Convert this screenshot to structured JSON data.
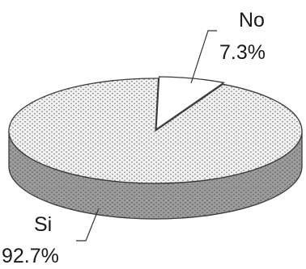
{
  "chart_data": {
    "type": "pie",
    "style": "3d",
    "slices": [
      {
        "label": "Si",
        "value": 92.7,
        "value_label": "92.7%"
      },
      {
        "label": "No",
        "value": 7.3,
        "value_label": "7.3%"
      }
    ],
    "colors": {
      "top_fill": "#f2f2f2",
      "top_dots": "#9a9a9a",
      "side_fill": "#9c9c9c",
      "side_dots": "#6e6e6e",
      "explode_fill": "#ffffff",
      "outline": "#3a3a3a"
    }
  }
}
